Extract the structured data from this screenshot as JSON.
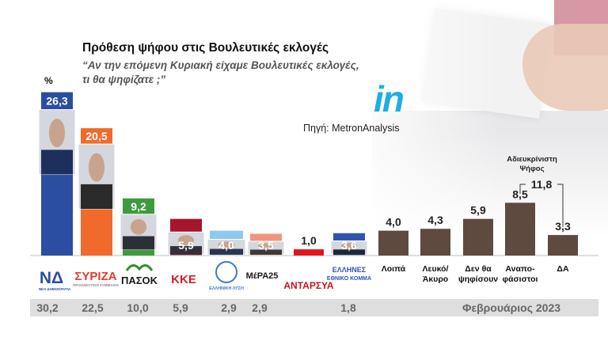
{
  "header": {
    "title": "Πρόθεση ψήφου στις Βουλευτικές εκλογές",
    "subtitle": "“Αν την επόμενη Κυριακή είχαμε Βουλευτικές εκλογές, τι θα ψηφίζατε ;”",
    "unit": "%",
    "brand": "in",
    "source": "Πηγή: MetronAnalysis"
  },
  "colors": {
    "nd": "#2b4ea3",
    "syriza": "#f06a2c",
    "pasok": "#3e9a3e",
    "kke": "#a5152e",
    "el_lysi": "#8fc8ee",
    "mera25": "#f0957a",
    "antarsya": "#e2141c",
    "ellines": "#2f55b0",
    "other": "#5e4a3e",
    "prev_band": "#dedede"
  },
  "logos": {
    "nd": "ΝΔ",
    "nd_sub": "ΝΕΑ ΔΗΜΟΚΡΑΤΙΑ",
    "syriza": "ΣΥΡΙΖΑ",
    "syriza_sub": "ΠΡΟΟΔΕΥΤΙΚΗ ΣΥΜΜΑΧΙΑ",
    "pasok": "ΠΑΣΟΚ",
    "kke": "ΚΚΕ",
    "el_lysi": "ΕΛΛΗΝΙΚΗ ΛΥΣΗ",
    "mera25": "ΜέΡΑ25",
    "antarsya": "ΑΝΤΑΡΣΥΑ",
    "ellines_line1": "ΕΛΛΗΝΕΣ",
    "ellines_line2": "ΕΘΝΙΚΟ ΚΟΜΜΑ"
  },
  "chart_data": {
    "type": "bar",
    "title": "Πρόθεση ψήφου στις Βουλευτικές εκλογές",
    "ylabel": "%",
    "ylim": [
      0,
      28
    ],
    "grid": false,
    "categories": [
      "ΝΔ",
      "ΣΥΡΙΖΑ",
      "ΠΑΣΟΚ",
      "ΚΚΕ",
      "ΕΛΛΗΝΙΚΗ ΛΥΣΗ",
      "ΜέΡΑ25",
      "ΑΝΤΑΡΣΥΑ",
      "ΕΛΛΗΝΕΣ ΕΘΝΙΚΟ ΚΟΜΜΑ",
      "Λοιπά",
      "Λευκό/ Άκυρο",
      "Δεν θα ψηφίσουν",
      "Αναπο- φάσιστοι",
      "ΔΑ"
    ],
    "category_labels": [
      "",
      "",
      "",
      "",
      "",
      "",
      "",
      "",
      "Λοιπά",
      "Λευκό/\nΆκυρο",
      "Δεν θα\nψηφίσουν",
      "Αναπο-\nφάσιστοι",
      "ΔΑ"
    ],
    "values": [
      26.3,
      20.5,
      9.2,
      5.9,
      4.0,
      3.5,
      1.0,
      3.6,
      4.0,
      4.3,
      5.9,
      8.5,
      3.3
    ],
    "value_labels": [
      "26,3",
      "20,5",
      "9,2",
      "5,9",
      "4,0",
      "3,5",
      "1,0",
      "3,6",
      "4,0",
      "4,3",
      "5,9",
      "8,5",
      "3,3"
    ],
    "previous_results": [
      "30,2",
      "22,5",
      "10,0",
      "5,9",
      "2,9",
      "2,9",
      "1,8"
    ],
    "previous_label": "Φεβρουάριος 2023",
    "annotation": {
      "label_line1": "Αδιευκρίνιστη",
      "label_line2": "Ψήφος",
      "value": "11,8"
    }
  }
}
